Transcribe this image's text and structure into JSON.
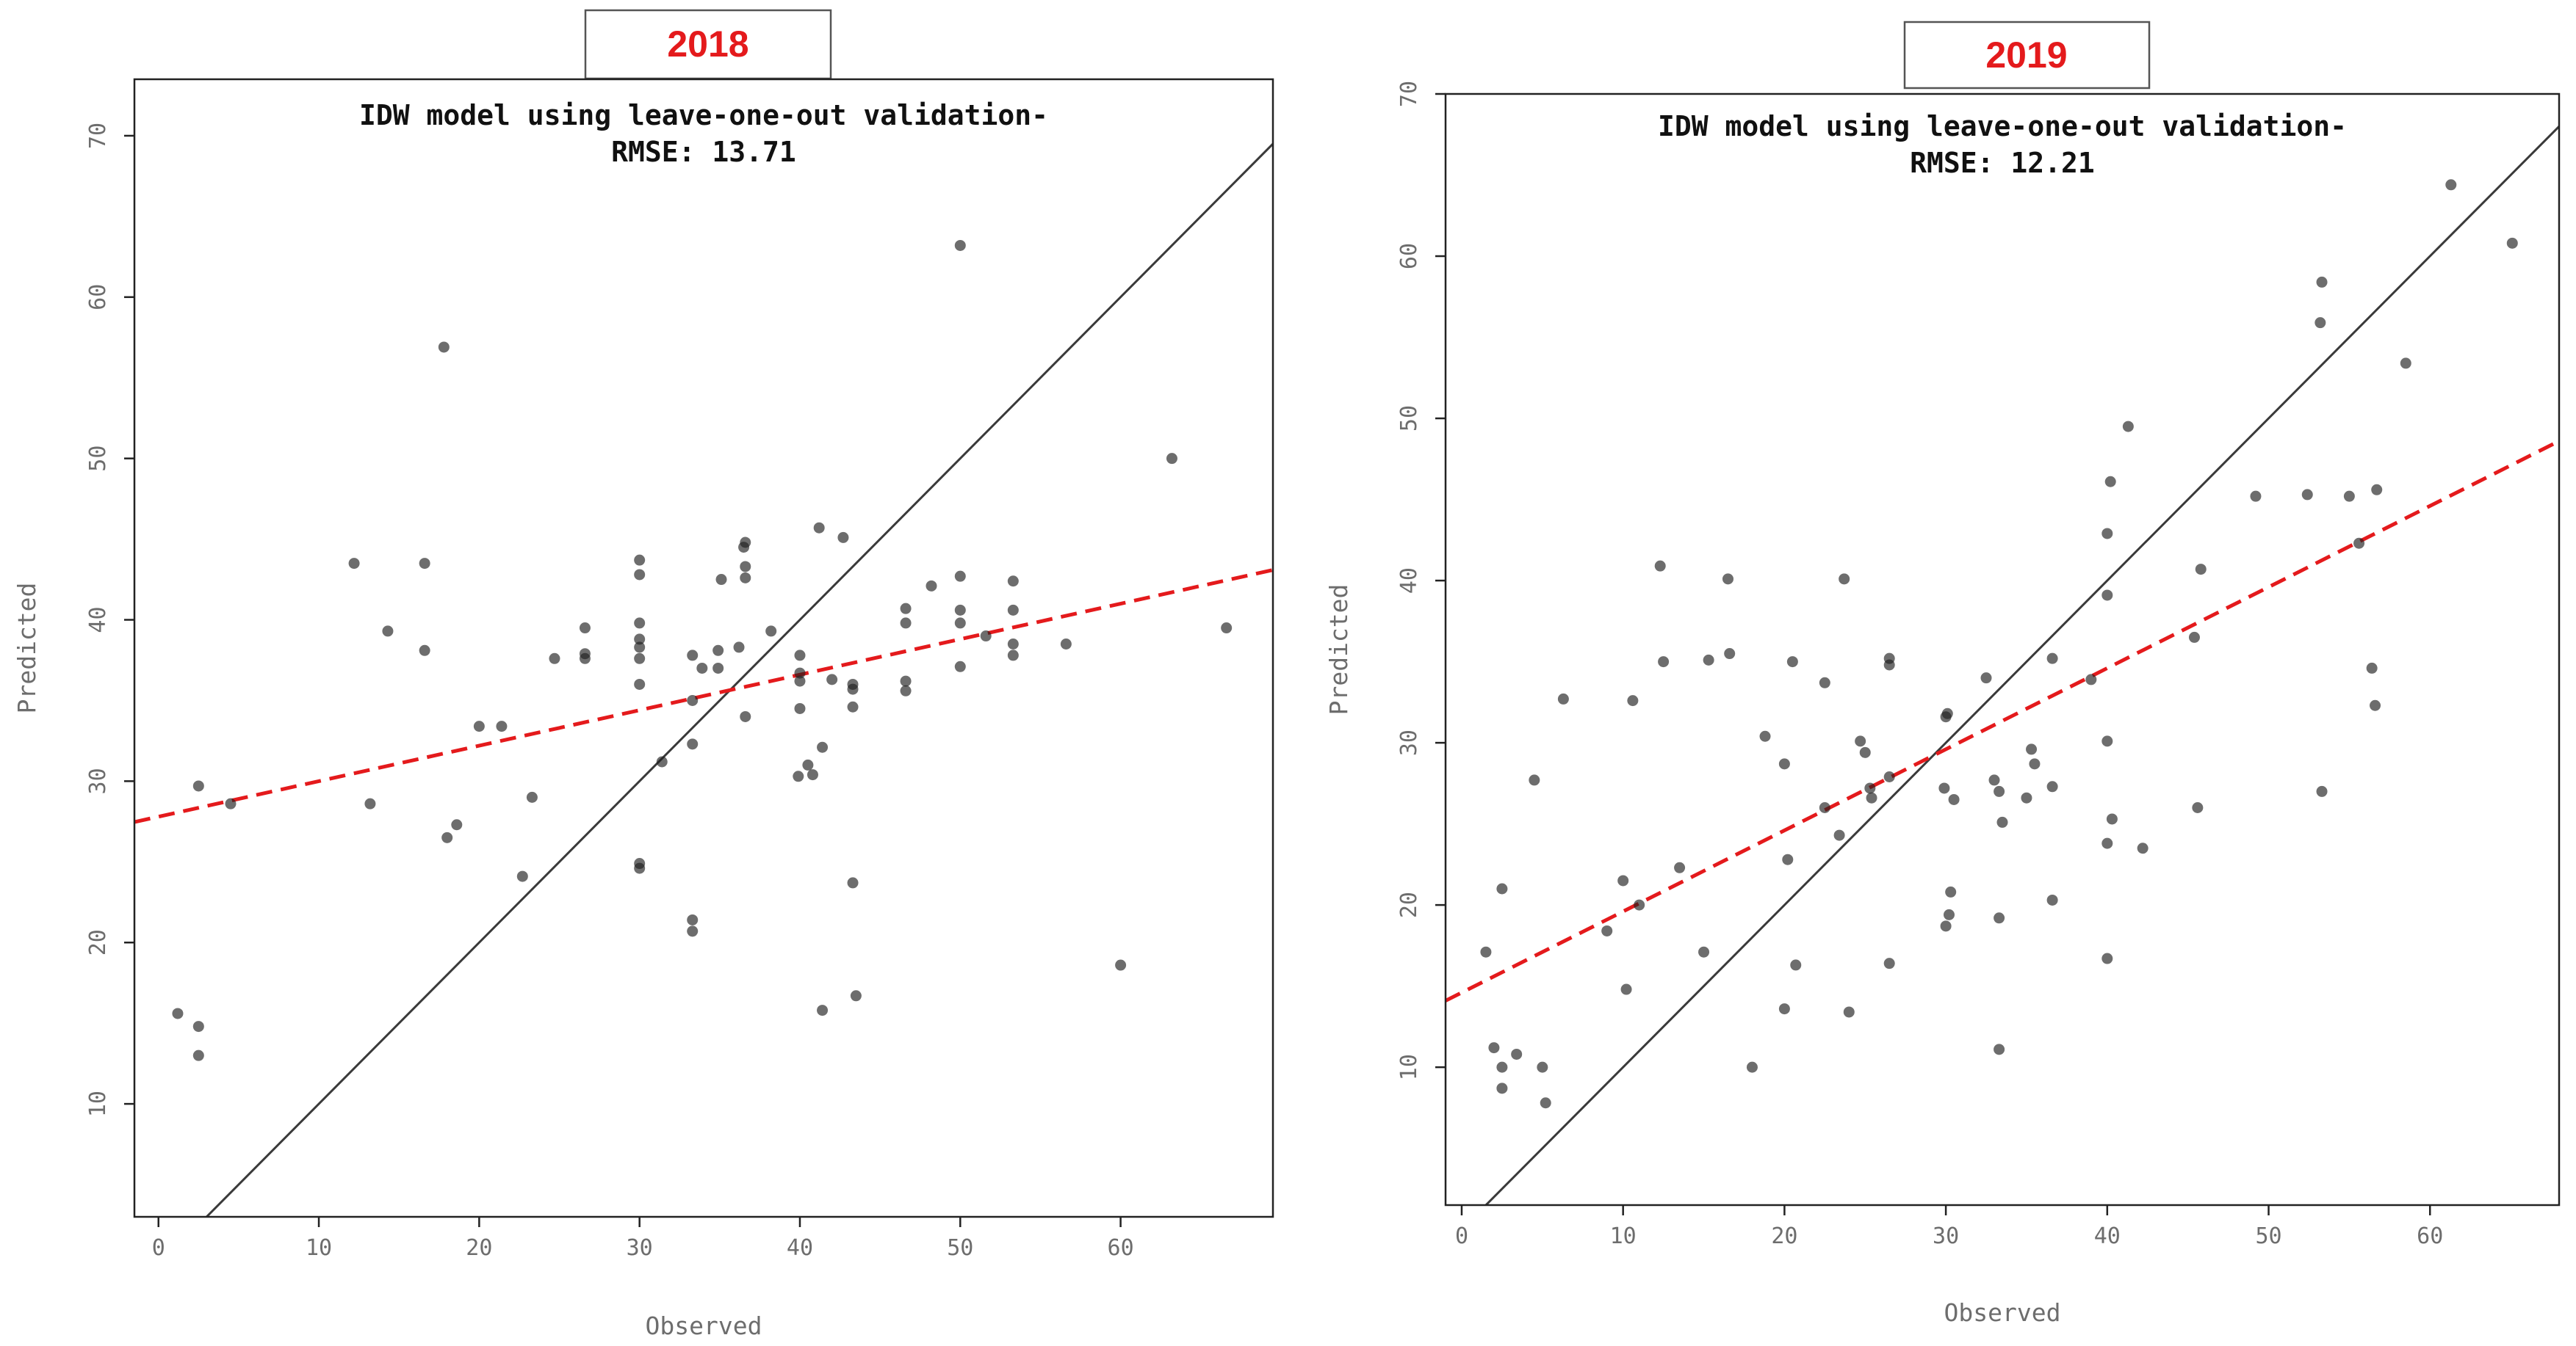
{
  "colors": {
    "accent": "#e41a1c",
    "point": "#1f1f1f",
    "identity_line": "#3a3a3a",
    "frame": "#222222"
  },
  "chart_data": [
    {
      "type": "scatter",
      "panel_label": "2018",
      "title": "IDW model using leave-one-out validation-",
      "subtitle": "RMSE:  13.71",
      "xlabel": "Observed",
      "ylabel": "Predicted",
      "xlim": [
        -1.5,
        69.5
      ],
      "ylim": [
        3,
        73.5
      ],
      "x_ticks": [
        0,
        10,
        20,
        30,
        40,
        50,
        60
      ],
      "y_ticks": [
        10,
        20,
        30,
        40,
        50,
        60,
        70
      ],
      "grid": false,
      "reference_lines": [
        {
          "kind": "identity",
          "style": "solid",
          "slope": 1,
          "intercept": 0
        },
        {
          "kind": "fit",
          "style": "dashed",
          "color": "#e41a1c",
          "slope": 0.22,
          "intercept": 27.8
        }
      ],
      "points": [
        [
          1.2,
          15.6
        ],
        [
          2.5,
          14.8
        ],
        [
          2.5,
          13.0
        ],
        [
          2.5,
          29.7
        ],
        [
          4.5,
          28.6
        ],
        [
          12.2,
          43.5
        ],
        [
          13.2,
          28.6
        ],
        [
          14.3,
          39.3
        ],
        [
          16.6,
          43.5
        ],
        [
          16.6,
          38.1
        ],
        [
          17.8,
          56.9
        ],
        [
          18.0,
          26.5
        ],
        [
          18.6,
          27.3
        ],
        [
          20.0,
          33.4
        ],
        [
          21.4,
          33.4
        ],
        [
          22.7,
          24.1
        ],
        [
          23.3,
          29.0
        ],
        [
          24.7,
          37.6
        ],
        [
          26.6,
          39.5
        ],
        [
          26.6,
          37.9
        ],
        [
          26.6,
          37.6
        ],
        [
          30.0,
          43.7
        ],
        [
          30.0,
          42.8
        ],
        [
          30.0,
          39.8
        ],
        [
          30.0,
          38.8
        ],
        [
          30.0,
          38.3
        ],
        [
          30.0,
          37.6
        ],
        [
          30.0,
          36.0
        ],
        [
          30.0,
          24.9
        ],
        [
          30.0,
          24.6
        ],
        [
          31.4,
          31.2
        ],
        [
          33.3,
          37.8
        ],
        [
          33.3,
          35.0
        ],
        [
          33.3,
          32.3
        ],
        [
          33.3,
          21.4
        ],
        [
          33.3,
          20.7
        ],
        [
          33.9,
          37.0
        ],
        [
          34.9,
          37.0
        ],
        [
          34.9,
          38.1
        ],
        [
          35.1,
          42.5
        ],
        [
          36.2,
          38.3
        ],
        [
          36.5,
          44.5
        ],
        [
          36.6,
          43.3
        ],
        [
          36.6,
          42.6
        ],
        [
          36.6,
          44.8
        ],
        [
          36.6,
          34.0
        ],
        [
          38.2,
          39.3
        ],
        [
          39.9,
          30.3
        ],
        [
          40.0,
          37.8
        ],
        [
          40.0,
          36.7
        ],
        [
          40.0,
          36.2
        ],
        [
          40.0,
          34.5
        ],
        [
          40.5,
          31.0
        ],
        [
          40.8,
          30.4
        ],
        [
          41.2,
          45.7
        ],
        [
          41.4,
          32.1
        ],
        [
          41.4,
          15.8
        ],
        [
          42.0,
          36.3
        ],
        [
          42.7,
          45.1
        ],
        [
          43.3,
          36.0
        ],
        [
          43.3,
          35.7
        ],
        [
          43.3,
          34.6
        ],
        [
          43.3,
          23.7
        ],
        [
          43.5,
          16.7
        ],
        [
          46.6,
          40.7
        ],
        [
          46.6,
          39.8
        ],
        [
          46.6,
          36.2
        ],
        [
          46.6,
          35.6
        ],
        [
          48.2,
          42.1
        ],
        [
          50.0,
          63.2
        ],
        [
          50.0,
          42.7
        ],
        [
          50.0,
          40.6
        ],
        [
          50.0,
          39.8
        ],
        [
          50.0,
          37.1
        ],
        [
          51.6,
          39.0
        ],
        [
          53.3,
          42.4
        ],
        [
          53.3,
          40.6
        ],
        [
          53.3,
          38.5
        ],
        [
          53.3,
          37.8
        ],
        [
          56.6,
          38.5
        ],
        [
          60.0,
          18.6
        ],
        [
          63.2,
          50.0
        ],
        [
          66.6,
          39.5
        ]
      ]
    },
    {
      "type": "scatter",
      "panel_label": "2019",
      "title": "IDW model using leave-one-out validation-",
      "subtitle": "RMSE:  12.21",
      "xlabel": "Observed",
      "ylabel": "Predicted",
      "xlim": [
        -1,
        68
      ],
      "ylim": [
        1.5,
        70
      ],
      "x_ticks": [
        0,
        10,
        20,
        30,
        40,
        50,
        60
      ],
      "y_ticks": [
        10,
        20,
        30,
        40,
        50,
        60,
        70
      ],
      "grid": false,
      "reference_lines": [
        {
          "kind": "identity",
          "style": "solid",
          "slope": 1,
          "intercept": 0
        },
        {
          "kind": "fit",
          "style": "dashed",
          "color": "#e41a1c",
          "slope": 0.5,
          "intercept": 14.6
        }
      ],
      "points": [
        [
          1.5,
          17.1
        ],
        [
          2.0,
          11.2
        ],
        [
          2.5,
          10.0
        ],
        [
          2.5,
          8.7
        ],
        [
          2.5,
          21.0
        ],
        [
          3.4,
          10.8
        ],
        [
          4.5,
          27.7
        ],
        [
          5.0,
          10.0
        ],
        [
          5.2,
          7.8
        ],
        [
          6.3,
          32.7
        ],
        [
          9.0,
          18.4
        ],
        [
          10.0,
          21.5
        ],
        [
          10.2,
          14.8
        ],
        [
          10.6,
          32.6
        ],
        [
          11.0,
          20.0
        ],
        [
          12.3,
          40.9
        ],
        [
          12.5,
          35.0
        ],
        [
          13.5,
          22.3
        ],
        [
          15.0,
          17.1
        ],
        [
          15.3,
          35.1
        ],
        [
          16.5,
          40.1
        ],
        [
          16.6,
          35.5
        ],
        [
          18.0,
          10.0
        ],
        [
          18.8,
          30.4
        ],
        [
          20.0,
          28.7
        ],
        [
          20.2,
          22.8
        ],
        [
          20.5,
          35.0
        ],
        [
          20.7,
          16.3
        ],
        [
          20.0,
          13.6
        ],
        [
          22.5,
          33.7
        ],
        [
          22.5,
          26.0
        ],
        [
          23.4,
          24.3
        ],
        [
          23.7,
          40.1
        ],
        [
          24.0,
          13.4
        ],
        [
          24.7,
          30.1
        ],
        [
          25.0,
          29.4
        ],
        [
          25.3,
          27.2
        ],
        [
          25.4,
          26.6
        ],
        [
          26.5,
          35.2
        ],
        [
          26.5,
          34.8
        ],
        [
          26.5,
          27.9
        ],
        [
          26.5,
          16.4
        ],
        [
          29.9,
          27.2
        ],
        [
          30.0,
          31.6
        ],
        [
          30.1,
          31.8
        ],
        [
          30.0,
          18.7
        ],
        [
          30.2,
          19.4
        ],
        [
          30.3,
          20.8
        ],
        [
          30.5,
          26.5
        ],
        [
          32.5,
          34.0
        ],
        [
          33.0,
          27.7
        ],
        [
          33.3,
          27.0
        ],
        [
          33.3,
          19.2
        ],
        [
          33.3,
          11.1
        ],
        [
          33.5,
          25.1
        ],
        [
          35.0,
          26.6
        ],
        [
          35.3,
          29.6
        ],
        [
          35.5,
          28.7
        ],
        [
          36.6,
          35.2
        ],
        [
          36.6,
          27.3
        ],
        [
          36.6,
          20.3
        ],
        [
          39.0,
          33.9
        ],
        [
          40.0,
          39.1
        ],
        [
          40.0,
          42.9
        ],
        [
          40.2,
          46.1
        ],
        [
          40.0,
          30.1
        ],
        [
          40.3,
          25.3
        ],
        [
          40.0,
          23.8
        ],
        [
          40.0,
          16.7
        ],
        [
          41.3,
          49.5
        ],
        [
          42.2,
          23.5
        ],
        [
          45.4,
          36.5
        ],
        [
          45.6,
          26.0
        ],
        [
          45.8,
          40.7
        ],
        [
          49.2,
          45.2
        ],
        [
          52.4,
          45.3
        ],
        [
          53.3,
          58.4
        ],
        [
          53.2,
          55.9
        ],
        [
          53.3,
          27.0
        ],
        [
          55.0,
          45.2
        ],
        [
          55.6,
          42.3
        ],
        [
          56.4,
          34.6
        ],
        [
          56.6,
          32.3
        ],
        [
          56.7,
          45.6
        ],
        [
          58.5,
          53.4
        ],
        [
          61.3,
          64.4
        ],
        [
          65.1,
          60.8
        ]
      ]
    }
  ]
}
